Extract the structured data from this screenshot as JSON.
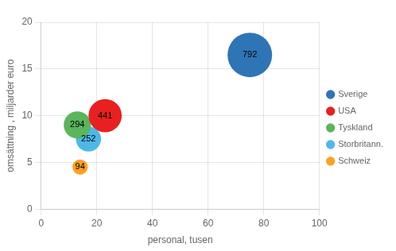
{
  "chart_data": {
    "type": "bubble",
    "xlabel": "personal, tusen",
    "ylabel": "omsättning , miljarder euro",
    "series": [
      {
        "name": "Sverige",
        "color": "#2E75B6",
        "x": [
          75
        ],
        "values": [
          16.5
        ],
        "sizes": [
          792
        ]
      },
      {
        "name": "USA",
        "color": "#E82020",
        "x": [
          23
        ],
        "values": [
          10.0
        ],
        "sizes": [
          441
        ]
      },
      {
        "name": "Tyskland",
        "color": "#5BB55B",
        "x": [
          13
        ],
        "values": [
          9.0
        ],
        "sizes": [
          294
        ]
      },
      {
        "name": "Storbritann.",
        "color": "#4DB8E8",
        "x": [
          17
        ],
        "values": [
          7.5
        ],
        "sizes": [
          252
        ]
      },
      {
        "name": "Schweiz",
        "color": "#FFA020",
        "x": [
          14
        ],
        "values": [
          4.5
        ],
        "sizes": [
          94
        ]
      }
    ],
    "xlim": [
      0,
      100
    ],
    "ylim": [
      0,
      20
    ],
    "xticks": [
      0,
      20,
      40,
      60,
      80,
      100
    ],
    "yticks": [
      0,
      5,
      10,
      15,
      20
    ],
    "grid": true,
    "legend": "right",
    "data_labels": true
  }
}
